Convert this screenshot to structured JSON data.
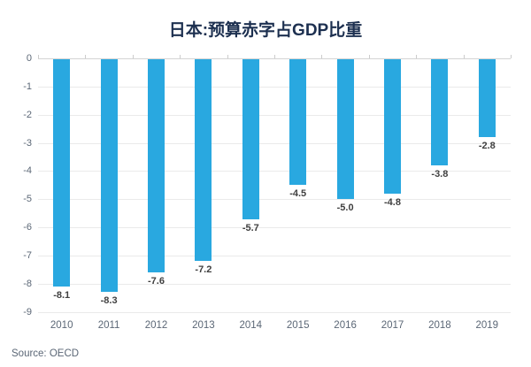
{
  "title": "日本:预算赤字占GDP比重",
  "source": "Source: OECD",
  "colors": {
    "bar": "#29A8E0",
    "title": "#1D3050",
    "axis_label": "#5B6776",
    "data_label": "#3F3F3F",
    "gridline": "#EAEAEA",
    "zero_line": "#D4D4D4",
    "tick": "#CCCCCC",
    "source": "#5B6776",
    "background": "#FFFFFF"
  },
  "chart_data": {
    "type": "bar",
    "title": "日本:预算赤字占GDP比重",
    "categories": [
      "2010",
      "2011",
      "2012",
      "2013",
      "2014",
      "2015",
      "2016",
      "2017",
      "2018",
      "2019"
    ],
    "values": [
      -8.1,
      -8.3,
      -7.6,
      -7.2,
      -5.7,
      -4.5,
      -5.0,
      -4.8,
      -3.8,
      -2.8
    ],
    "data_labels": [
      "-8.1",
      "-8.3",
      "-7.6",
      "-7.2",
      "-5.7",
      "-4.5",
      "-5.0",
      "-4.8",
      "-3.8",
      "-2.8"
    ],
    "xlabel": "",
    "ylabel": "",
    "ylim": [
      -9,
      0
    ],
    "yticks": [
      0,
      -1,
      -2,
      -3,
      -4,
      -5,
      -6,
      -7,
      -8,
      -9
    ],
    "ytick_labels": [
      "0",
      "-1",
      "-2",
      "-3",
      "-4",
      "-5",
      "-6",
      "-7",
      "-8",
      "-9"
    ],
    "grid": true,
    "legend": false,
    "bar_orientation": "vertical-negative",
    "source_note": "Source: OECD"
  }
}
